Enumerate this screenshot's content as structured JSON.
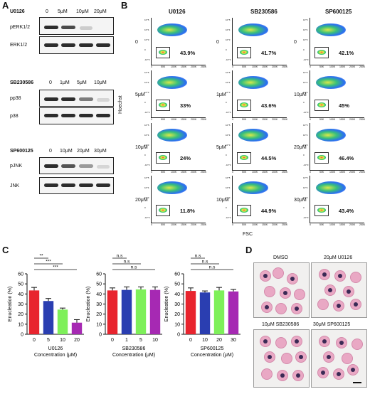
{
  "panels": {
    "a": "A",
    "b": "B",
    "c": "C",
    "d": "D"
  },
  "western": {
    "u0126": {
      "drug": "U0126",
      "doses": [
        "0",
        "5μM",
        "10μM",
        "20μM"
      ],
      "rows": [
        "pERK1/2",
        "ERK1/2"
      ]
    },
    "sb": {
      "drug": "SB230586",
      "doses": [
        "0",
        "1μM",
        "5μM",
        "10μM"
      ],
      "rows": [
        "pp38",
        "p38"
      ]
    },
    "sp": {
      "drug": "SP600125",
      "doses": [
        "0",
        "10μM",
        "20μM",
        "30μM"
      ],
      "rows": [
        "pJNK",
        "JNK"
      ]
    }
  },
  "flow": {
    "cols": [
      "U0126",
      "SB230586",
      "SP600125"
    ],
    "yaxis": "Hoechst",
    "xaxis": "FSC",
    "xticks": [
      "0",
      "50K",
      "100K",
      "150K",
      "200K",
      "250K"
    ],
    "yticks": [
      "10^5",
      "10^4",
      "10^3",
      "0",
      "-10^3"
    ],
    "doses": [
      [
        "0",
        "5μM",
        "10μM",
        "20μM"
      ],
      [
        "0",
        "1μM",
        "5μM",
        "10μM"
      ],
      [
        "0",
        "10μM",
        "20μM",
        "30μM"
      ]
    ],
    "pct": [
      [
        "43.9%",
        "33%",
        "24%",
        "11.8%"
      ],
      [
        "41.7%",
        "43.6%",
        "44.5%",
        "44.9%"
      ],
      [
        "42.1%",
        "45%",
        "46.4%",
        "43.4%"
      ]
    ]
  },
  "chart_data": [
    {
      "type": "bar",
      "title": "",
      "xlabel": "U0126\nConcentration (μM)",
      "ylabel": "Enucleation (%)",
      "categories": [
        "0",
        "5",
        "10",
        "20"
      ],
      "values": [
        43.5,
        33,
        24.5,
        11.5
      ],
      "errors": [
        3,
        2.5,
        1.5,
        3
      ],
      "colors": [
        "#e8242e",
        "#2a3eb1",
        "#7ef05a",
        "#a629b3"
      ],
      "ylim": [
        0,
        60
      ],
      "yticks": [
        "0",
        "10",
        "20",
        "30",
        "40",
        "50",
        "60"
      ],
      "sig": [
        {
          "from": 0,
          "to": 1,
          "label": "**"
        },
        {
          "from": 0,
          "to": 2,
          "label": "***"
        },
        {
          "from": 0,
          "to": 3,
          "label": "***"
        }
      ]
    },
    {
      "type": "bar",
      "title": "",
      "xlabel": "SB230586\nConcentration (μM)",
      "ylabel": "Enucleation (%)",
      "categories": [
        "0",
        "1",
        "5",
        "10"
      ],
      "values": [
        43.5,
        44,
        44.5,
        44
      ],
      "errors": [
        2.5,
        3,
        2.5,
        3
      ],
      "colors": [
        "#e8242e",
        "#2a3eb1",
        "#7ef05a",
        "#a629b3"
      ],
      "ylim": [
        0,
        60
      ],
      "yticks": [
        "0",
        "10",
        "20",
        "30",
        "40",
        "50",
        "60"
      ],
      "sig": [
        {
          "from": 0,
          "to": 1,
          "label": "n.s"
        },
        {
          "from": 0,
          "to": 2,
          "label": "n.s"
        },
        {
          "from": 0,
          "to": 3,
          "label": "n.s"
        }
      ]
    },
    {
      "type": "bar",
      "title": "",
      "xlabel": "SP600125\nConcentration (μM)",
      "ylabel": "Enucleation (%)",
      "categories": [
        "0",
        "10",
        "20",
        "30"
      ],
      "values": [
        43,
        41.5,
        43.5,
        42.5
      ],
      "errors": [
        3,
        1.5,
        3,
        2
      ],
      "colors": [
        "#e8242e",
        "#2a3eb1",
        "#7ef05a",
        "#a629b3"
      ],
      "ylim": [
        0,
        60
      ],
      "yticks": [
        "0",
        "10",
        "20",
        "30",
        "40",
        "50",
        "60"
      ],
      "sig": [
        {
          "from": 0,
          "to": 1,
          "label": "n.s"
        },
        {
          "from": 0,
          "to": 2,
          "label": "n.s"
        },
        {
          "from": 0,
          "to": 3,
          "label": "n.s"
        }
      ]
    }
  ],
  "micro": {
    "labels": [
      "DMSO",
      "20μM U0126",
      "10μM SB230586",
      "30μM SP600125"
    ]
  }
}
